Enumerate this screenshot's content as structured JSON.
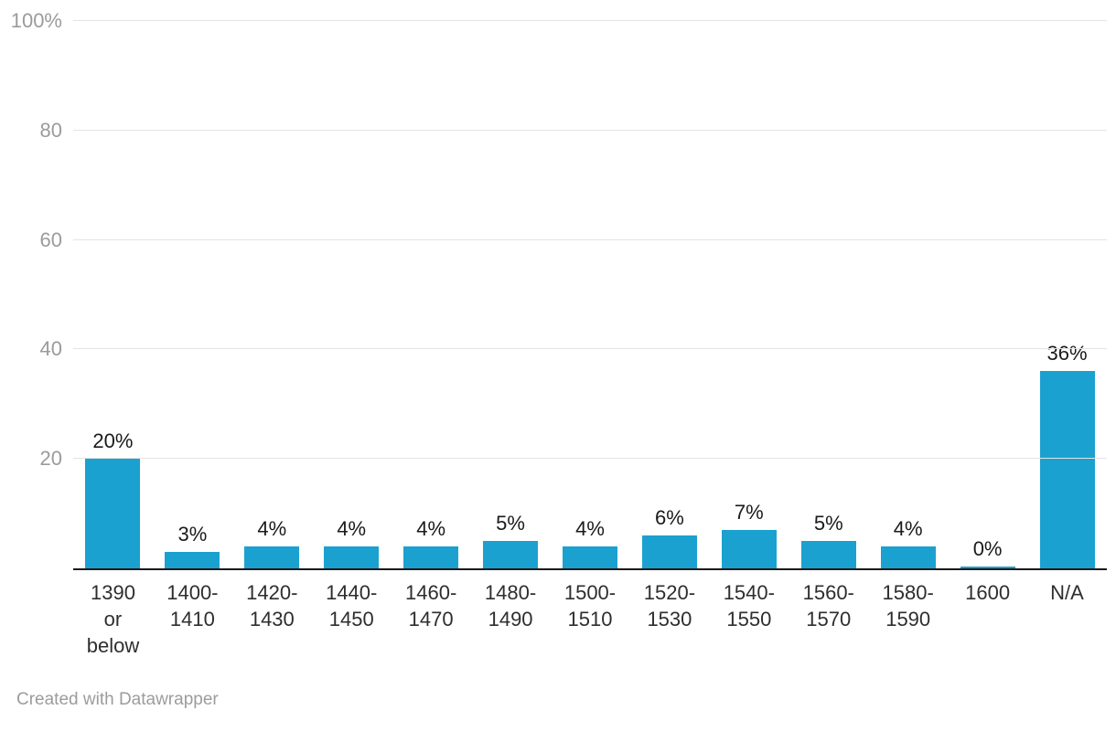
{
  "chart_data": {
    "type": "bar",
    "title": "",
    "xlabel": "",
    "ylabel": "",
    "categories": [
      "1390\nor\nbelow",
      "1400-\n1410",
      "1420-\n1430",
      "1440-\n1450",
      "1460-\n1470",
      "1480-\n1490",
      "1500-\n1510",
      "1520-\n1530",
      "1540-\n1550",
      "1560-\n1570",
      "1580-\n1590",
      "1600",
      "N/A"
    ],
    "values": [
      20,
      3,
      4,
      4,
      4,
      5,
      4,
      6,
      7,
      5,
      4,
      0,
      36
    ],
    "value_labels": [
      "20%",
      "3%",
      "4%",
      "4%",
      "4%",
      "5%",
      "4%",
      "6%",
      "7%",
      "5%",
      "4%",
      "0%",
      "36%"
    ],
    "ylim": [
      0,
      100
    ],
    "y_ticks": [
      {
        "value": 100,
        "label": "100%"
      },
      {
        "value": 80,
        "label": "80"
      },
      {
        "value": 60,
        "label": "60"
      },
      {
        "value": 40,
        "label": "40"
      },
      {
        "value": 20,
        "label": "20"
      }
    ],
    "grid": true,
    "legend": false,
    "bar_color": "#1BA1CF"
  },
  "colors": {
    "bar": "#1BA1CF",
    "gridline": "#e3e3e3",
    "axis_line": "#1a1a1a",
    "y_tick_label": "#9b9b9b",
    "x_label": "#2e2e2e",
    "value_label": "#1a1a1a",
    "footer": "#9c9c9c",
    "background": "#ffffff"
  },
  "footer": {
    "credit": "Created with Datawrapper"
  }
}
